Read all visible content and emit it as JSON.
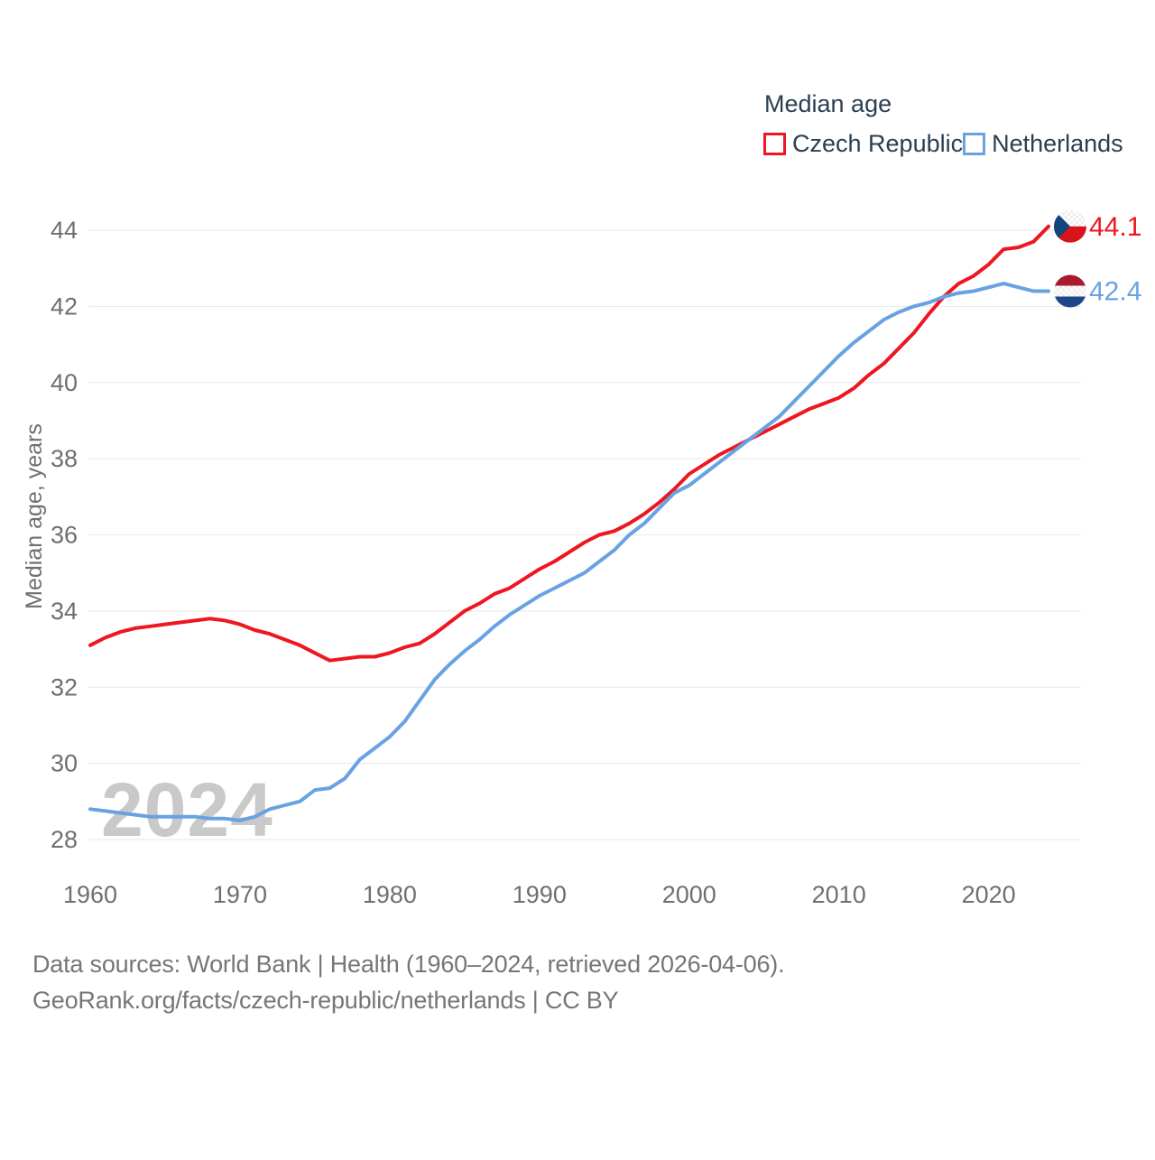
{
  "legend": {
    "title": "Median age",
    "items": [
      {
        "label": "Czech Republic",
        "color": "#ee1620"
      },
      {
        "label": "Netherlands",
        "color": "#68a2e2"
      }
    ]
  },
  "watermark": "2024",
  "y_axis": {
    "title": "Median age, years"
  },
  "end_labels": {
    "czech": "44.1",
    "netherlands": "42.4"
  },
  "footer": {
    "line1": "Data sources: World Bank | Health (1960–2024, retrieved 2026-04-06).",
    "line2": "GeoRank.org/facts/czech-republic/netherlands | CC BY"
  },
  "flag_colors": {
    "czech": {
      "white": "#ffffff",
      "red": "#d7141a",
      "blue": "#11457e"
    },
    "netherlands": {
      "red": "#a91a2e",
      "white": "#ffffff",
      "blue": "#1f468b"
    }
  },
  "chart_data": {
    "type": "line",
    "title": "Median age",
    "ylabel": "Median age, years",
    "xlabel": "",
    "ylim": [
      28,
      44
    ],
    "yticks": [
      28,
      30,
      32,
      34,
      36,
      38,
      40,
      42,
      44
    ],
    "xticks": [
      1960,
      1970,
      1980,
      1990,
      2000,
      2010,
      2020
    ],
    "grid": "horizontal",
    "legend_position": "top-right",
    "x": [
      1960,
      1961,
      1962,
      1963,
      1964,
      1965,
      1966,
      1967,
      1968,
      1969,
      1970,
      1971,
      1972,
      1973,
      1974,
      1975,
      1976,
      1977,
      1978,
      1979,
      1980,
      1981,
      1982,
      1983,
      1984,
      1985,
      1986,
      1987,
      1988,
      1989,
      1990,
      1991,
      1992,
      1993,
      1994,
      1995,
      1996,
      1997,
      1998,
      1999,
      2000,
      2001,
      2002,
      2003,
      2004,
      2005,
      2006,
      2007,
      2008,
      2009,
      2010,
      2011,
      2012,
      2013,
      2014,
      2015,
      2016,
      2017,
      2018,
      2019,
      2020,
      2021,
      2022,
      2023,
      2024
    ],
    "series": [
      {
        "name": "Czech Republic",
        "color": "#ee1620",
        "end_label": "44.1",
        "values": [
          33.1,
          33.3,
          33.45,
          33.55,
          33.6,
          33.65,
          33.7,
          33.75,
          33.8,
          33.75,
          33.65,
          33.5,
          33.4,
          33.25,
          33.1,
          32.9,
          32.7,
          32.75,
          32.8,
          32.8,
          32.9,
          33.05,
          33.15,
          33.4,
          33.7,
          34.0,
          34.2,
          34.45,
          34.6,
          34.85,
          35.1,
          35.3,
          35.55,
          35.8,
          36.0,
          36.1,
          36.3,
          36.55,
          36.85,
          37.2,
          37.6,
          37.85,
          38.1,
          38.3,
          38.5,
          38.7,
          38.9,
          39.1,
          39.3,
          39.45,
          39.6,
          39.85,
          40.2,
          40.5,
          40.9,
          41.3,
          41.8,
          42.25,
          42.6,
          42.8,
          43.1,
          43.5,
          43.55,
          43.7,
          44.1
        ]
      },
      {
        "name": "Netherlands",
        "color": "#68a2e2",
        "end_label": "42.4",
        "values": [
          28.8,
          28.75,
          28.7,
          28.65,
          28.6,
          28.6,
          28.6,
          28.6,
          28.55,
          28.55,
          28.5,
          28.6,
          28.8,
          28.9,
          29.0,
          29.3,
          29.35,
          29.6,
          30.1,
          30.4,
          30.7,
          31.1,
          31.65,
          32.2,
          32.6,
          32.95,
          33.25,
          33.6,
          33.9,
          34.15,
          34.4,
          34.6,
          34.8,
          35.0,
          35.3,
          35.6,
          36.0,
          36.3,
          36.7,
          37.1,
          37.3,
          37.6,
          37.9,
          38.2,
          38.5,
          38.8,
          39.1,
          39.5,
          39.9,
          40.3,
          40.7,
          41.05,
          41.35,
          41.65,
          41.85,
          42.0,
          42.1,
          42.25,
          42.35,
          42.4,
          42.5,
          42.6,
          42.5,
          42.4,
          42.4
        ]
      }
    ]
  }
}
